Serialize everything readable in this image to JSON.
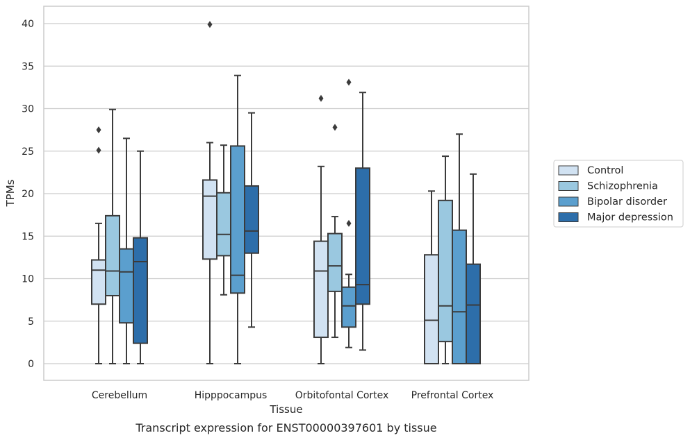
{
  "chart_data": {
    "type": "box",
    "title": "",
    "caption": "Transcript expression for ENST00000397601 by tissue",
    "xlabel": "Tissue",
    "ylabel": "TPMs",
    "ylim": [
      -2,
      42
    ],
    "yticks": [
      0,
      5,
      10,
      15,
      20,
      25,
      30,
      35,
      40
    ],
    "grid": "horizontal",
    "legend_position": "right",
    "categories": [
      "Cerebellum",
      "Hipppocampus",
      "Orbitofontal Cortex",
      "Prefrontal Cortex"
    ],
    "series": [
      {
        "name": "Control",
        "color": "#d1e2f2",
        "boxes": [
          {
            "whisker_low": 0,
            "q1": 7.0,
            "median": 11.0,
            "q3": 12.2,
            "whisker_high": 16.5,
            "outliers": [
              25.1,
              27.5
            ]
          },
          {
            "whisker_low": 0,
            "q1": 12.3,
            "median": 19.7,
            "q3": 21.6,
            "whisker_high": 26.0,
            "outliers": [
              39.9
            ]
          },
          {
            "whisker_low": 0,
            "q1": 3.1,
            "median": 10.9,
            "q3": 14.4,
            "whisker_high": 23.2,
            "outliers": [
              31.2
            ]
          },
          {
            "whisker_low": 0,
            "q1": 0,
            "median": 5.1,
            "q3": 12.8,
            "whisker_high": 20.3,
            "outliers": []
          }
        ]
      },
      {
        "name": "Schizophrenia",
        "color": "#9ac8e0",
        "boxes": [
          {
            "whisker_low": 0,
            "q1": 8.0,
            "median": 10.9,
            "q3": 17.4,
            "whisker_high": 29.9,
            "outliers": []
          },
          {
            "whisker_low": 8.1,
            "q1": 12.7,
            "median": 15.2,
            "q3": 20.1,
            "whisker_high": 25.7,
            "outliers": []
          },
          {
            "whisker_low": 3.1,
            "q1": 8.5,
            "median": 11.5,
            "q3": 15.3,
            "whisker_high": 17.3,
            "outliers": [
              27.8
            ]
          },
          {
            "whisker_low": 0,
            "q1": 2.6,
            "median": 6.8,
            "q3": 19.2,
            "whisker_high": 24.4,
            "outliers": []
          }
        ]
      },
      {
        "name": "Bipolar disorder",
        "color": "#5b9fce",
        "boxes": [
          {
            "whisker_low": 0,
            "q1": 4.8,
            "median": 10.8,
            "q3": 13.5,
            "whisker_high": 26.5,
            "outliers": []
          },
          {
            "whisker_low": 0,
            "q1": 8.3,
            "median": 10.4,
            "q3": 25.6,
            "whisker_high": 33.9,
            "outliers": []
          },
          {
            "whisker_low": 1.9,
            "q1": 4.3,
            "median": 6.8,
            "q3": 9.0,
            "whisker_high": 10.5,
            "outliers": [
              16.5,
              33.1
            ]
          },
          {
            "whisker_low": 0,
            "q1": 0,
            "median": 6.1,
            "q3": 15.7,
            "whisker_high": 27.0,
            "outliers": []
          }
        ]
      },
      {
        "name": "Major depression",
        "color": "#2d6eaa",
        "boxes": [
          {
            "whisker_low": 0,
            "q1": 2.4,
            "median": 12.0,
            "q3": 14.8,
            "whisker_high": 25.0,
            "outliers": []
          },
          {
            "whisker_low": 4.3,
            "q1": 13.0,
            "median": 15.6,
            "q3": 20.9,
            "whisker_high": 29.5,
            "outliers": []
          },
          {
            "whisker_low": 1.6,
            "q1": 7.0,
            "median": 9.3,
            "q3": 23.0,
            "whisker_high": 31.9,
            "outliers": []
          },
          {
            "whisker_low": 0,
            "q1": 0,
            "median": 6.9,
            "q3": 11.7,
            "whisker_high": 22.3,
            "outliers": []
          }
        ]
      }
    ]
  }
}
